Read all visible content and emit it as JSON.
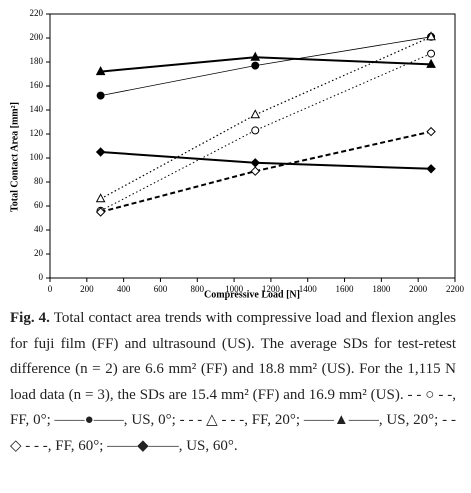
{
  "chart_data": {
    "type": "line",
    "ylabel": "Total Contact Area [mm²]",
    "xlabel": "Compressive Load [N]",
    "xlim": [
      0,
      2200
    ],
    "xticks": [
      0,
      200,
      400,
      600,
      800,
      1000,
      1200,
      1400,
      1600,
      1800,
      2000,
      2200
    ],
    "ylim": [
      0,
      220
    ],
    "yticks": [
      0,
      20,
      40,
      60,
      80,
      100,
      120,
      140,
      160,
      180,
      200,
      220
    ],
    "x": [
      275,
      1115,
      2070
    ],
    "series": [
      {
        "color": "#000000",
        "marker": "open-circle",
        "line": "dotted",
        "width": 1,
        "values": [
          56,
          123,
          187
        ]
      },
      {
        "color": "#000000",
        "marker": "filled-circle",
        "line": "solid",
        "width": 0.8,
        "values": [
          152,
          177,
          201
        ]
      },
      {
        "color": "#000000",
        "marker": "open-triangle",
        "line": "dotted",
        "width": 1.2,
        "values": [
          66,
          136,
          201
        ]
      },
      {
        "color": "#000000",
        "marker": "filled-triangle",
        "line": "solid",
        "width": 2,
        "values": [
          172,
          184,
          178
        ]
      },
      {
        "color": "#000000",
        "marker": "open-diamond",
        "line": "dashed",
        "width": 2,
        "values": [
          55,
          89,
          122
        ]
      },
      {
        "color": "#000000",
        "marker": "filled-diamond",
        "line": "solid",
        "width": 2,
        "values": [
          105,
          96,
          91
        ]
      }
    ]
  },
  "caption": {
    "label": "Fig. 4.",
    "text": "Total contact area trends with compressive load and flexion angles for fuji film (FF) and ultrasound (US). The average SDs for test-retest difference (n = 2) are 6.6 mm² (FF) and 18.8 mm² (US). For the 1,115 N load data (n = 3), the SDs are 15.4 mm² (FF) and 16.9 mm² (US). - - ○ - -, FF, 0°; ——●——, US, 0°; - - - △ - - -, FF, 20°; ——▲——, US, 20°; - - ◇ - - -, FF, 60°; ——◆——, US, 60°."
  }
}
